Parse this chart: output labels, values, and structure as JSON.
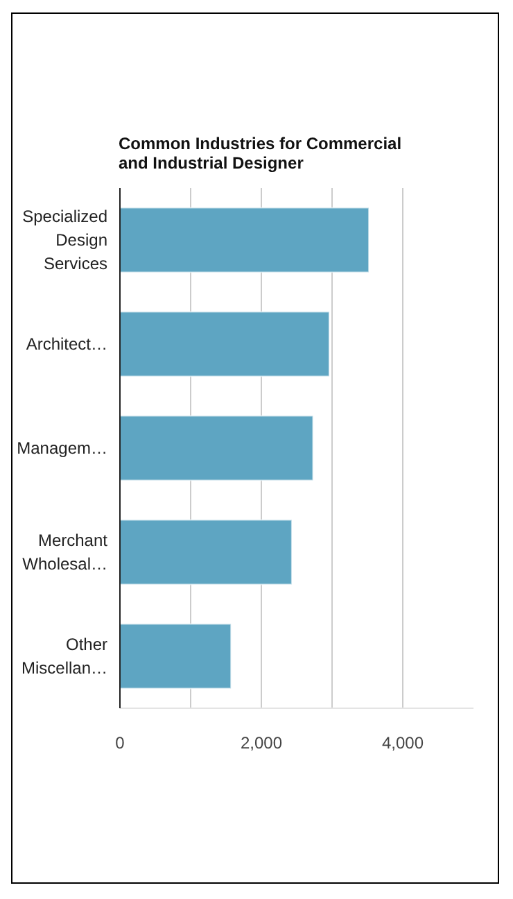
{
  "chart_data": {
    "type": "bar",
    "orientation": "horizontal",
    "title": "Common Industries for Commercial and Industrial Designer",
    "categories": [
      "Specialized Design Services",
      "Architect…",
      "Managem…",
      "Merchant Wholesal…",
      "Other Miscellan…"
    ],
    "values": [
      3520,
      2960,
      2730,
      2430,
      1570
    ],
    "color": "#5ea5c2",
    "xlim": [
      0,
      5000
    ],
    "xticks": [
      0,
      {
        "value": 1000,
        "label": null
      },
      {
        "value": 2000,
        "label": "2,000"
      },
      {
        "value": 3000,
        "label": null
      },
      {
        "value": 4000,
        "label": "4,000"
      }
    ],
    "grid": "x"
  }
}
